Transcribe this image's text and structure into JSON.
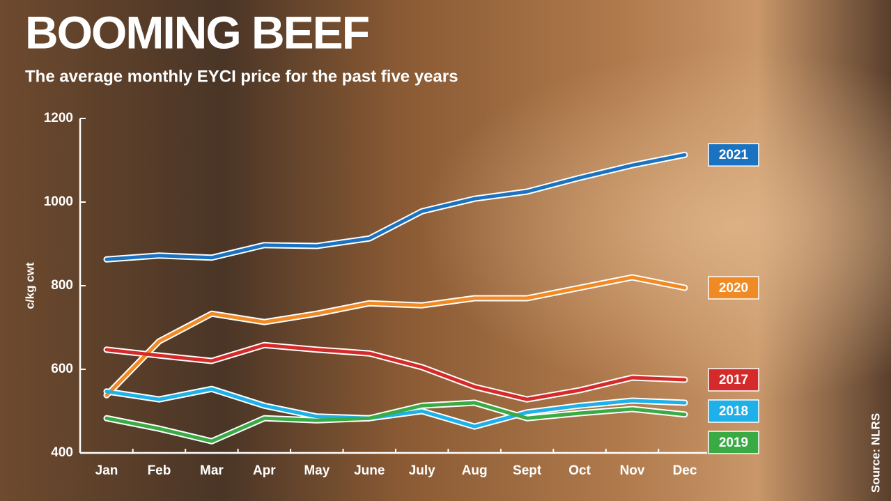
{
  "chart_data": {
    "type": "line",
    "title": "BOOMING BEEF",
    "subtitle": "The average monthly EYCI price for the past five years",
    "y_label": "c/kg cwt",
    "source": "Source: NLRS",
    "categories": [
      "Jan",
      "Feb",
      "Mar",
      "Apr",
      "May",
      "June",
      "July",
      "Aug",
      "Sept",
      "Oct",
      "Nov",
      "Dec"
    ],
    "ylim": [
      400,
      1200
    ],
    "yticks": [
      400,
      600,
      800,
      1000,
      1200
    ],
    "series": [
      {
        "name": "2021",
        "color": "#1a72c0",
        "values": [
          863,
          872,
          867,
          897,
          895,
          913,
          978,
          1008,
          1025,
          1058,
          1088,
          1113
        ]
      },
      {
        "name": "2020",
        "color": "#f08a24",
        "values": [
          538,
          667,
          733,
          713,
          733,
          758,
          753,
          770,
          770,
          795,
          820,
          795
        ]
      },
      {
        "name": "2017",
        "color": "#d42a2a",
        "values": [
          647,
          633,
          620,
          658,
          647,
          638,
          605,
          558,
          528,
          550,
          580,
          575
        ]
      },
      {
        "name": "2018",
        "color": "#1eb0e8",
        "values": [
          547,
          528,
          553,
          513,
          487,
          483,
          500,
          463,
          497,
          513,
          525,
          520
        ]
      },
      {
        "name": "2019",
        "color": "#3aaa45",
        "values": [
          483,
          458,
          428,
          483,
          478,
          483,
          513,
          520,
          483,
          495,
          505,
          492
        ]
      }
    ]
  }
}
